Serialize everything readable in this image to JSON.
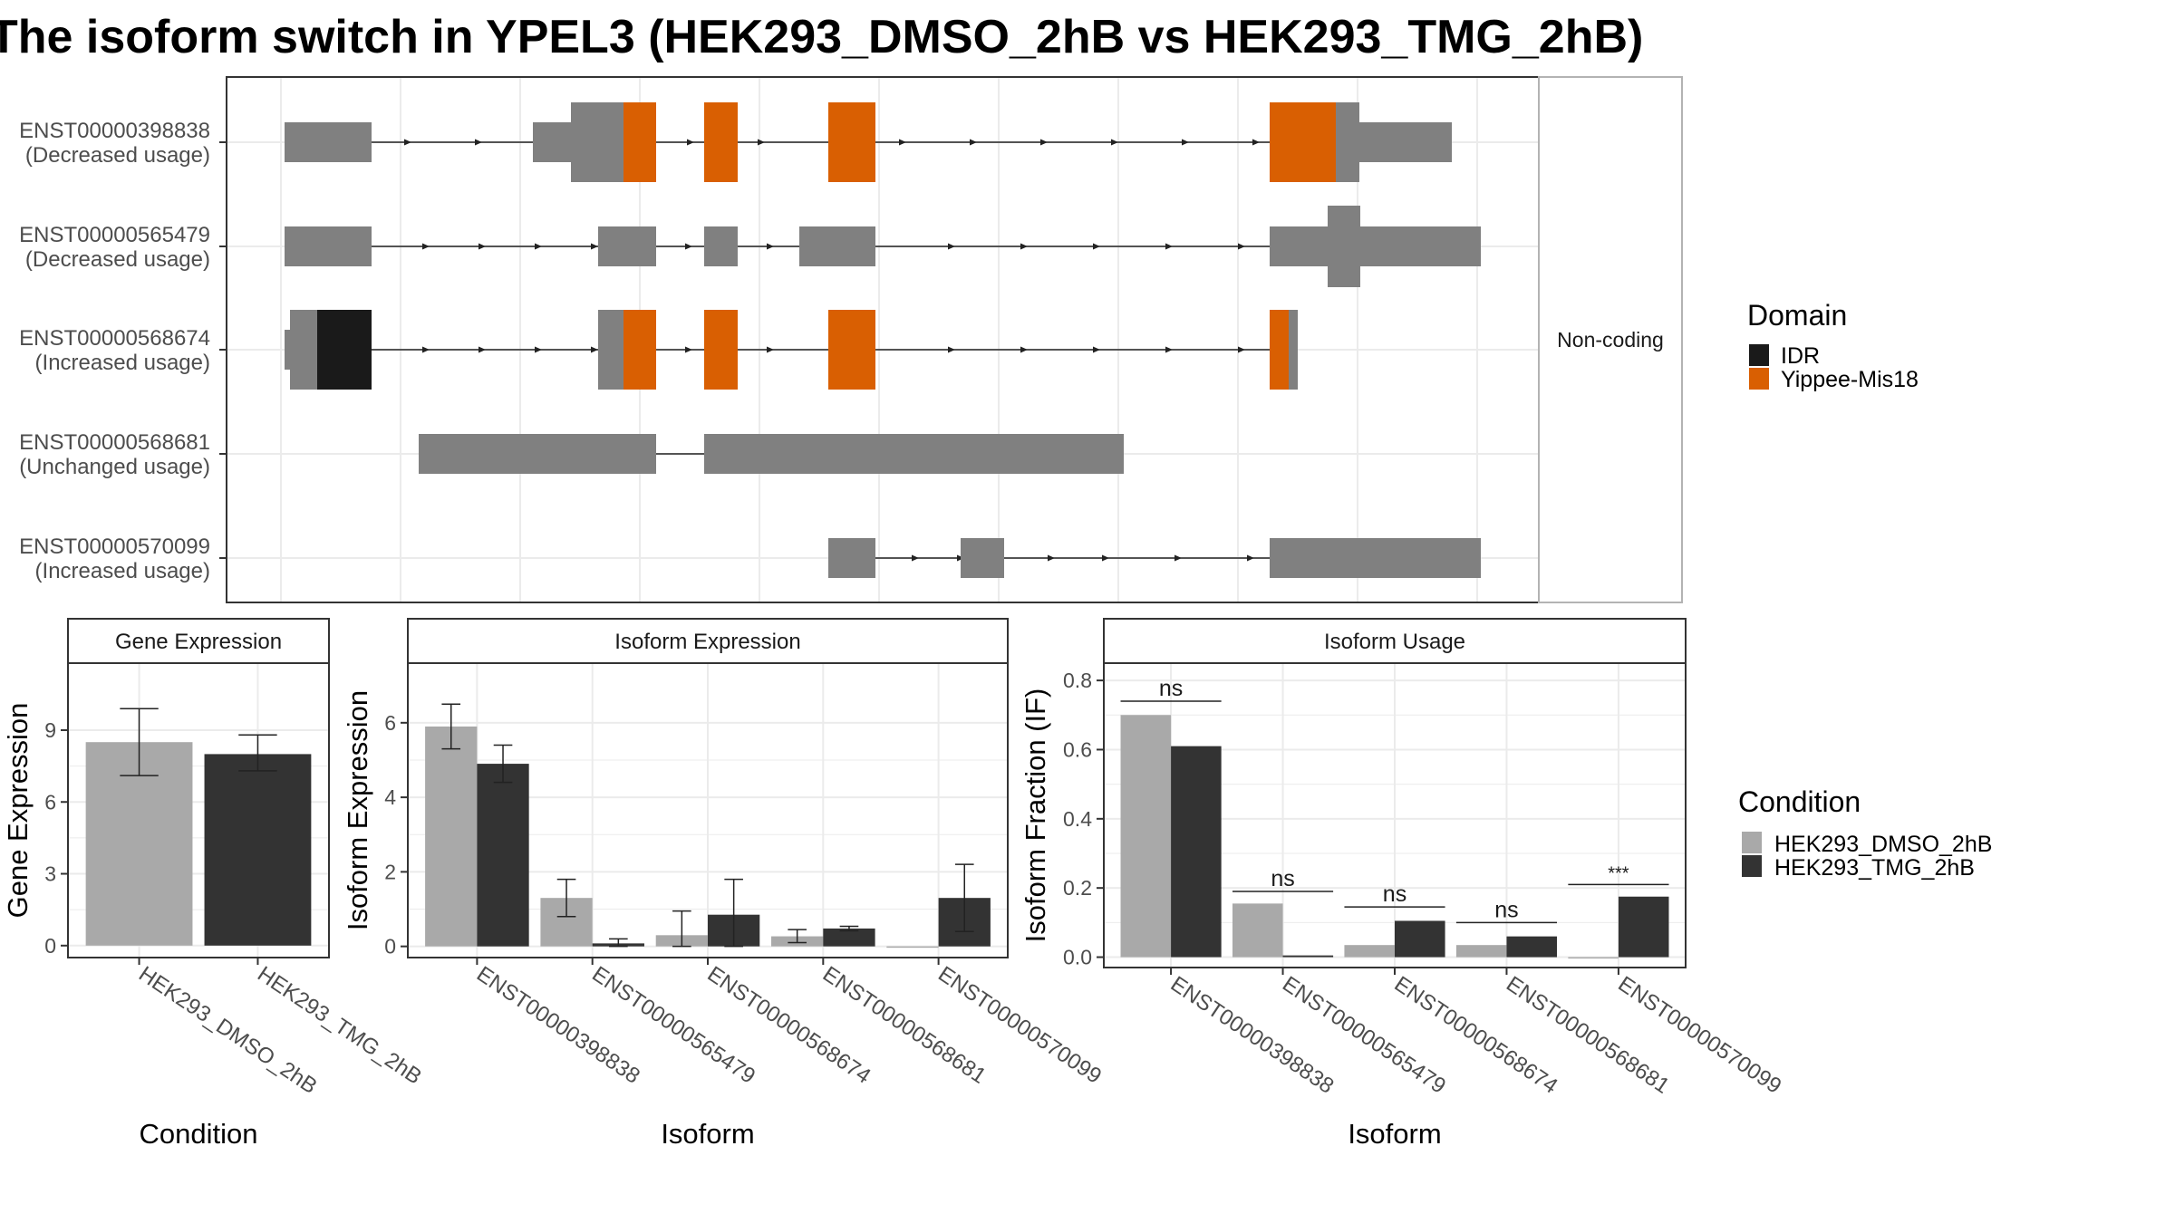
{
  "title": "The isoform switch in YPEL3 (HEK293_DMSO_2hB vs HEK293_TMG_2hB)",
  "colors": {
    "exon": "#808080",
    "idr": "#1a1a1a",
    "yippee": "#d95f02",
    "dmso": "#a9a9a9",
    "tmg": "#333333",
    "grid": "#ebebeb",
    "strip": "#ffffff",
    "panel_border": "#333333"
  },
  "transcript_panel": {
    "strip_label": "Non-coding",
    "transcripts": [
      {
        "id": "ENST00000398838",
        "usage": "(Decreased usage)"
      },
      {
        "id": "ENST00000565479",
        "usage": "(Decreased usage)"
      },
      {
        "id": "ENST00000568674",
        "usage": "(Increased usage)"
      },
      {
        "id": "ENST00000568681",
        "usage": "(Unchanged usage)"
      },
      {
        "id": "ENST00000570099",
        "usage": "(Increased usage)"
      }
    ]
  },
  "legend_domain": {
    "title": "Domain",
    "items": [
      {
        "label": "IDR",
        "color": "#1a1a1a"
      },
      {
        "label": "Yippee-Mis18",
        "color": "#d95f02"
      }
    ]
  },
  "legend_condition": {
    "title": "Condition",
    "items": [
      {
        "label": "HEK293_DMSO_2hB",
        "color": "#a9a9a9"
      },
      {
        "label": "HEK293_TMG_2hB",
        "color": "#333333"
      }
    ]
  },
  "chart_data": [
    {
      "type": "bar",
      "title": "Gene Expression",
      "xlabel": "Condition",
      "ylabel": "Gene Expression",
      "categories": [
        "HEK293_DMSO_2hB",
        "HEK293_TMG_2hB"
      ],
      "values": [
        8.5,
        8.0
      ],
      "error_low": [
        7.1,
        7.3
      ],
      "error_high": [
        9.9,
        8.8
      ],
      "yticks": [
        0,
        3,
        6,
        9
      ],
      "ylim": [
        -0.5,
        11.8
      ],
      "grid": true
    },
    {
      "type": "bar",
      "title": "Isoform Expression",
      "xlabel": "Isoform",
      "ylabel": "Isoform Expression",
      "categories": [
        "ENST00000398838",
        "ENST00000565479",
        "ENST00000568674",
        "ENST00000568681",
        "ENST00000570099"
      ],
      "series": [
        {
          "name": "HEK293_DMSO_2hB",
          "values": [
            5.9,
            1.3,
            0.3,
            0.27,
            0.0
          ],
          "error_low": [
            5.3,
            0.8,
            0.0,
            0.1,
            0.0
          ],
          "error_high": [
            6.5,
            1.8,
            0.95,
            0.45,
            0.0
          ]
        },
        {
          "name": "HEK293_TMG_2hB",
          "values": [
            4.9,
            0.08,
            0.85,
            0.48,
            1.3
          ],
          "error_low": [
            4.4,
            0.0,
            0.0,
            0.42,
            0.4
          ],
          "error_high": [
            5.4,
            0.2,
            1.8,
            0.54,
            2.2
          ]
        }
      ],
      "yticks": [
        0,
        2,
        4,
        6
      ],
      "ylim": [
        -0.3,
        7.6
      ],
      "grid": true
    },
    {
      "type": "bar",
      "title": "Isoform Usage",
      "xlabel": "Isoform",
      "ylabel": "Isoform Fraction (IF)",
      "categories": [
        "ENST00000398838",
        "ENST00000565479",
        "ENST00000568674",
        "ENST00000568681",
        "ENST00000570099"
      ],
      "series": [
        {
          "name": "HEK293_DMSO_2hB",
          "values": [
            0.7,
            0.155,
            0.035,
            0.035,
            0.0
          ]
        },
        {
          "name": "HEK293_TMG_2hB",
          "values": [
            0.61,
            0.005,
            0.105,
            0.06,
            0.175
          ]
        }
      ],
      "significance": [
        "ns",
        "ns",
        "ns",
        "ns",
        "***"
      ],
      "significance_y": [
        0.74,
        0.19,
        0.145,
        0.1,
        0.21
      ],
      "yticks": [
        0.0,
        0.2,
        0.4,
        0.6,
        0.8
      ],
      "yticklabels": [
        "0.0",
        "0.2",
        "0.4",
        "0.6",
        "0.8"
      ],
      "ylim": [
        -0.03,
        0.85
      ],
      "grid": true
    }
  ]
}
